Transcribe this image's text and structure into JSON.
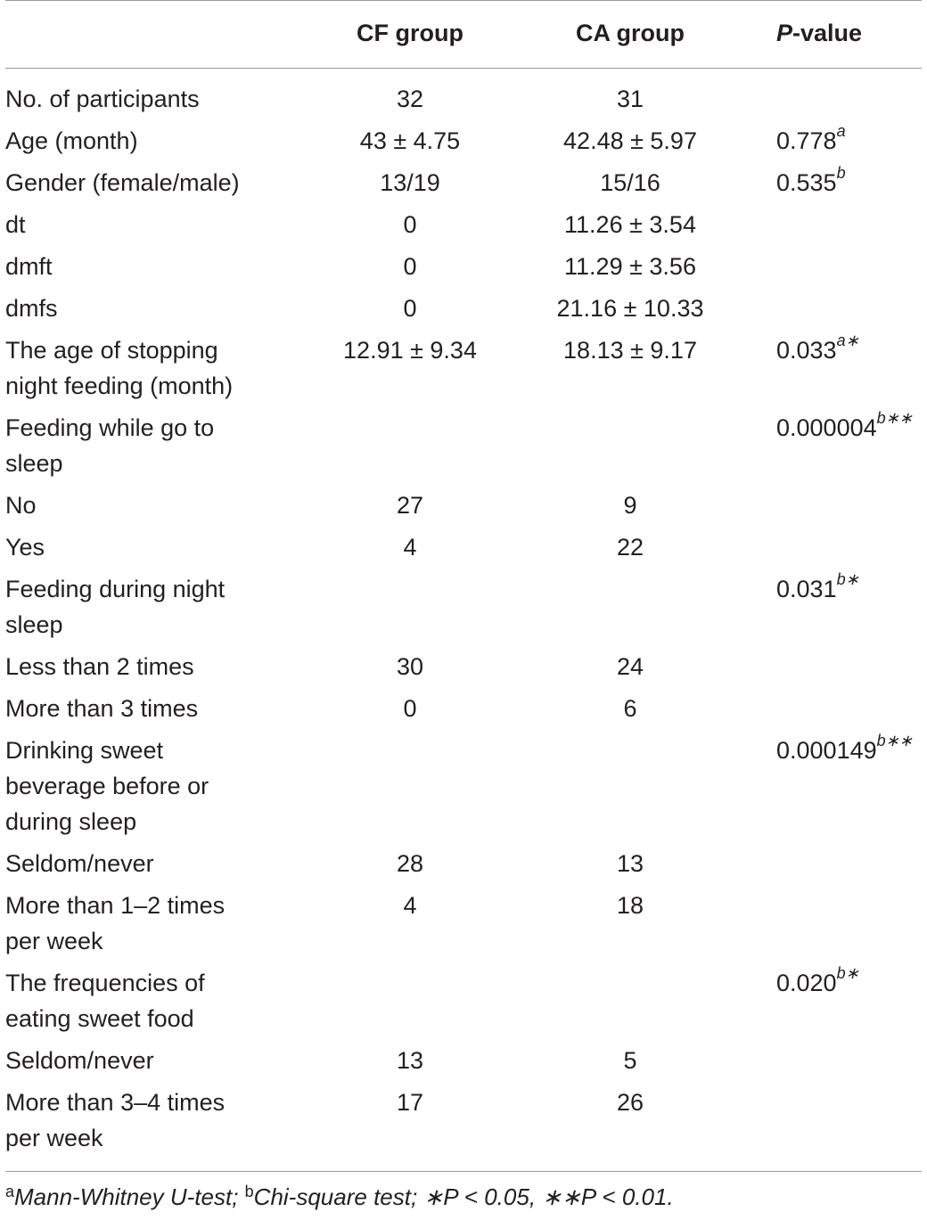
{
  "table": {
    "headers": {
      "label": "",
      "cf": "CF group",
      "ca": "CA group",
      "p_italic": "P",
      "p_rest": "-value"
    },
    "rows": [
      {
        "label": "No. of participants",
        "cf": "32",
        "ca": "31",
        "p": "",
        "p_sup": ""
      },
      {
        "label": "Age (month)",
        "cf": "43 ± 4.75",
        "ca": "42.48 ± 5.97",
        "p": "0.778",
        "p_sup": "a"
      },
      {
        "label": "Gender (female/male)",
        "cf": "13/19",
        "ca": "15/16",
        "p": "0.535",
        "p_sup": "b"
      },
      {
        "label": "dt",
        "cf": "0",
        "ca": "11.26 ± 3.54",
        "p": "",
        "p_sup": ""
      },
      {
        "label": "dmft",
        "cf": "0",
        "ca": "11.29 ± 3.56",
        "p": "",
        "p_sup": ""
      },
      {
        "label": "dmfs",
        "cf": "0",
        "ca": "21.16 ± 10.33",
        "p": "",
        "p_sup": ""
      },
      {
        "label": "The age of stopping night feeding (month)",
        "cf": "12.91 ± 9.34",
        "ca": "18.13 ± 9.17",
        "p": "0.033",
        "p_sup": "a∗"
      },
      {
        "label": "Feeding while go to sleep",
        "cf": "",
        "ca": "",
        "p": "0.000004",
        "p_sup": "b∗∗"
      },
      {
        "label": "No",
        "cf": "27",
        "ca": "9",
        "p": "",
        "p_sup": ""
      },
      {
        "label": "Yes",
        "cf": "4",
        "ca": "22",
        "p": "",
        "p_sup": ""
      },
      {
        "label": "Feeding during night sleep",
        "cf": "",
        "ca": "",
        "p": "0.031",
        "p_sup": "b∗"
      },
      {
        "label": "Less than 2 times",
        "cf": "30",
        "ca": "24",
        "p": "",
        "p_sup": ""
      },
      {
        "label": "More than 3 times",
        "cf": "0",
        "ca": "6",
        "p": "",
        "p_sup": ""
      },
      {
        "label": "Drinking sweet beverage before or during sleep",
        "cf": "",
        "ca": "",
        "p": "0.000149",
        "p_sup": "b∗∗"
      },
      {
        "label": "Seldom/never",
        "cf": "28",
        "ca": "13",
        "p": "",
        "p_sup": ""
      },
      {
        "label": "More than 1–2 times per week",
        "cf": "4",
        "ca": "18",
        "p": "",
        "p_sup": ""
      },
      {
        "label": "The frequencies of eating sweet food",
        "cf": "",
        "ca": "",
        "p": "0.020",
        "p_sup": "b∗"
      },
      {
        "label": "Seldom/never",
        "cf": "13",
        "ca": "5",
        "p": "",
        "p_sup": ""
      },
      {
        "label": "More than 3–4 times per week",
        "cf": "17",
        "ca": "26",
        "p": "",
        "p_sup": ""
      }
    ]
  },
  "footnote": {
    "a_mark": "a",
    "a_text": "Mann-Whitney U-test;",
    "b_mark": "b",
    "b_text": "Chi-square test; ∗P < 0.05, ∗∗P < 0.01."
  }
}
